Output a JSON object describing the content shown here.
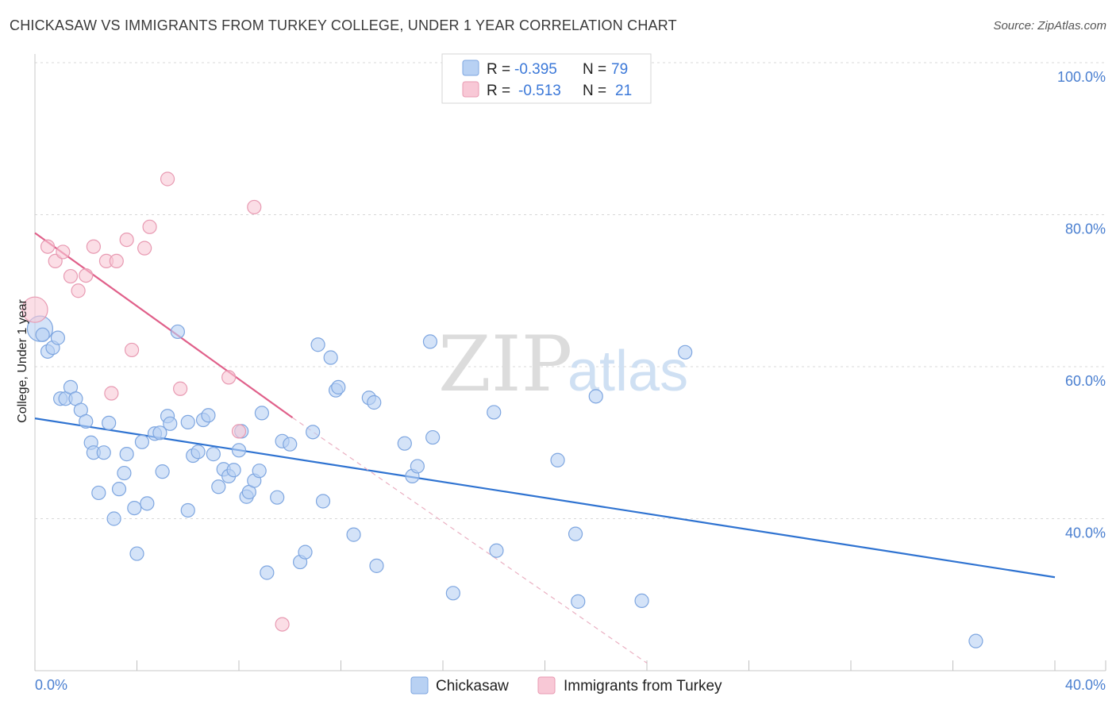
{
  "title": "CHICKASAW VS IMMIGRANTS FROM TURKEY COLLEGE, UNDER 1 YEAR CORRELATION CHART",
  "source": "Source: ZipAtlas.com",
  "watermark": {
    "part1": "ZIP",
    "part2": "atlas"
  },
  "colors": {
    "blue_fill": "#b8d1f3",
    "blue_stroke": "#7ea6e0",
    "blue_line": "#2f73d1",
    "pink_fill": "#f8c8d6",
    "pink_stroke": "#e89ab2",
    "pink_line": "#e0608a",
    "grid": "#d8d8d8",
    "tick_text": "#4a7fd0"
  },
  "legend": {
    "rows": [
      {
        "r_label": "R =",
        "r_value": "-0.395",
        "n_label": "N =",
        "n_value": "79"
      },
      {
        "r_label": "R =",
        "r_value": "-0.513",
        "n_label": "N =",
        "n_value": "21"
      }
    ]
  },
  "bottom_legend": [
    "Chickasaw",
    "Immigrants from Turkey"
  ],
  "chart_data": {
    "type": "scatter",
    "title": "CHICKASAW VS IMMIGRANTS FROM TURKEY COLLEGE, UNDER 1 YEAR CORRELATION CHART",
    "xlabel": "",
    "ylabel": "College, Under 1 year",
    "xlim": [
      0,
      40
    ],
    "ylim": [
      20,
      100
    ],
    "x_tick_labels": [
      "0.0%",
      "40.0%"
    ],
    "y_ticks": [
      40,
      60,
      80,
      100
    ],
    "y_tick_labels": [
      "40.0%",
      "60.0%",
      "80.0%",
      "100.0%"
    ],
    "grid": true,
    "series": [
      {
        "name": "Chickasaw",
        "color": "blue",
        "points": [
          [
            0.2,
            65.0
          ],
          [
            0.3,
            64.2
          ],
          [
            0.5,
            62.0
          ],
          [
            0.7,
            62.5
          ],
          [
            0.9,
            63.8
          ],
          [
            1.0,
            55.8
          ],
          [
            1.2,
            55.8
          ],
          [
            1.4,
            57.3
          ],
          [
            1.6,
            55.8
          ],
          [
            1.8,
            54.3
          ],
          [
            2.0,
            52.8
          ],
          [
            2.2,
            50.0
          ],
          [
            2.3,
            48.7
          ],
          [
            2.5,
            43.4
          ],
          [
            2.7,
            48.7
          ],
          [
            2.9,
            52.6
          ],
          [
            3.1,
            40.0
          ],
          [
            3.3,
            43.9
          ],
          [
            3.5,
            46.0
          ],
          [
            3.6,
            48.5
          ],
          [
            3.9,
            41.4
          ],
          [
            4.0,
            35.4
          ],
          [
            4.2,
            50.1
          ],
          [
            4.4,
            42.0
          ],
          [
            4.7,
            51.2
          ],
          [
            4.9,
            51.3
          ],
          [
            5.0,
            46.2
          ],
          [
            5.2,
            53.5
          ],
          [
            5.3,
            52.5
          ],
          [
            5.6,
            64.6
          ],
          [
            6.0,
            52.7
          ],
          [
            6.0,
            41.1
          ],
          [
            6.2,
            48.3
          ],
          [
            6.4,
            48.8
          ],
          [
            6.6,
            53.0
          ],
          [
            6.8,
            53.6
          ],
          [
            7.0,
            48.5
          ],
          [
            7.2,
            44.2
          ],
          [
            7.4,
            46.5
          ],
          [
            7.6,
            45.6
          ],
          [
            7.8,
            46.4
          ],
          [
            8.0,
            49.0
          ],
          [
            8.1,
            51.5
          ],
          [
            8.3,
            42.9
          ],
          [
            8.4,
            43.5
          ],
          [
            8.6,
            45.0
          ],
          [
            8.8,
            46.3
          ],
          [
            8.9,
            53.9
          ],
          [
            9.1,
            32.9
          ],
          [
            9.5,
            42.8
          ],
          [
            9.7,
            50.2
          ],
          [
            10.0,
            49.8
          ],
          [
            10.4,
            34.3
          ],
          [
            10.6,
            35.6
          ],
          [
            10.9,
            51.4
          ],
          [
            11.1,
            62.9
          ],
          [
            11.3,
            42.3
          ],
          [
            11.6,
            61.2
          ],
          [
            11.8,
            56.9
          ],
          [
            11.9,
            57.3
          ],
          [
            12.5,
            37.9
          ],
          [
            13.1,
            55.9
          ],
          [
            13.3,
            55.3
          ],
          [
            13.4,
            33.8
          ],
          [
            14.5,
            49.9
          ],
          [
            14.8,
            45.6
          ],
          [
            15.0,
            46.9
          ],
          [
            15.5,
            63.3
          ],
          [
            15.6,
            50.7
          ],
          [
            16.4,
            30.2
          ],
          [
            18.0,
            54.0
          ],
          [
            18.1,
            35.8
          ],
          [
            20.5,
            47.7
          ],
          [
            21.2,
            38.0
          ],
          [
            21.3,
            29.1
          ],
          [
            22.0,
            56.1
          ],
          [
            23.8,
            29.2
          ],
          [
            25.5,
            61.9
          ],
          [
            36.9,
            23.9
          ]
        ],
        "trendline": {
          "x": [
            0,
            40
          ],
          "y": [
            53.2,
            32.3
          ]
        }
      },
      {
        "name": "Immigrants from Turkey",
        "color": "pink",
        "points": [
          [
            0.0,
            67.5
          ],
          [
            0.5,
            75.8
          ],
          [
            0.8,
            73.9
          ],
          [
            1.1,
            75.1
          ],
          [
            1.4,
            71.9
          ],
          [
            1.7,
            70.0
          ],
          [
            2.0,
            72.0
          ],
          [
            2.3,
            75.8
          ],
          [
            2.8,
            73.9
          ],
          [
            3.2,
            73.9
          ],
          [
            3.6,
            76.7
          ],
          [
            3.8,
            62.2
          ],
          [
            4.3,
            75.6
          ],
          [
            4.5,
            78.4
          ],
          [
            5.2,
            84.7
          ],
          [
            5.7,
            57.1
          ],
          [
            3.0,
            56.5
          ],
          [
            7.6,
            58.6
          ],
          [
            8.0,
            51.5
          ],
          [
            8.6,
            81.0
          ],
          [
            9.7,
            26.1
          ]
        ],
        "trendline": {
          "x": [
            0,
            10.1
          ],
          "y": [
            77.6,
            53.3
          ]
        },
        "trendline_extension": {
          "x": [
            10.1,
            24
          ],
          "y": [
            53.3,
            21.0
          ]
        }
      }
    ]
  }
}
